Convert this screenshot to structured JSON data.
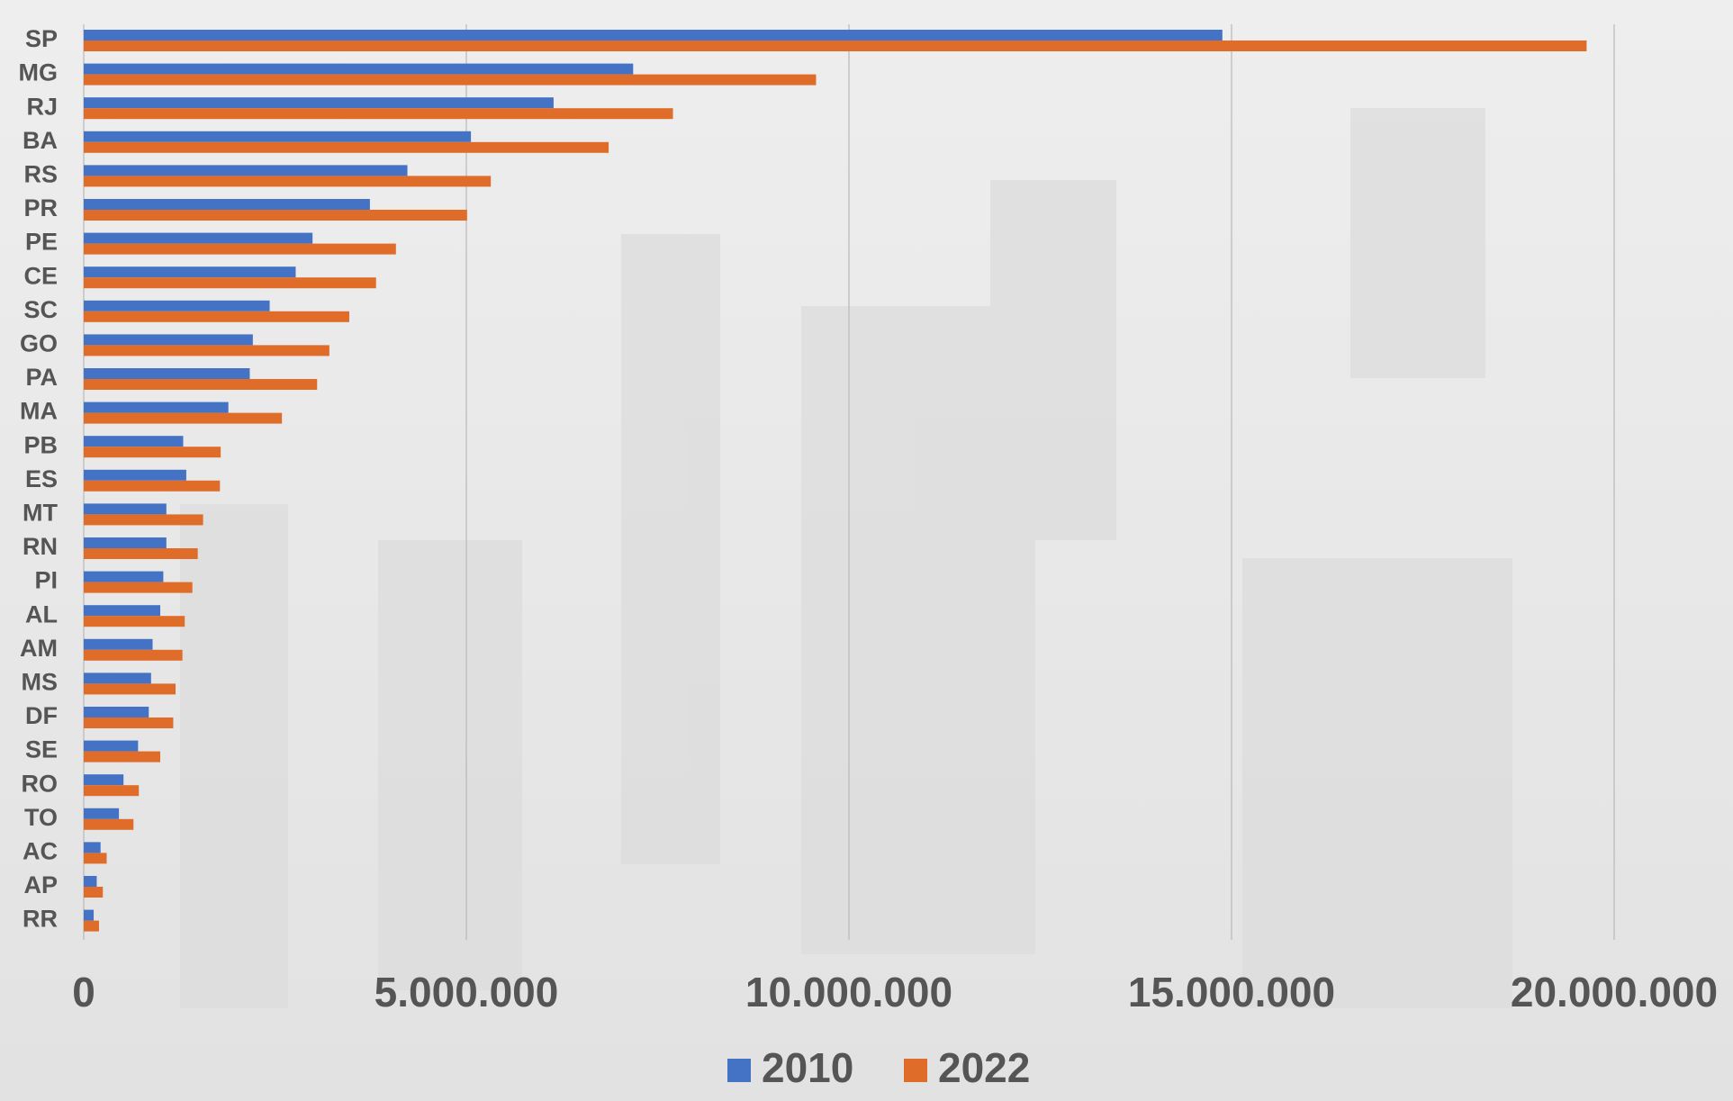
{
  "chart_data": {
    "type": "hbar",
    "categories": [
      "SP",
      "MG",
      "RJ",
      "BA",
      "RS",
      "PR",
      "PE",
      "CE",
      "SC",
      "GO",
      "PA",
      "MA",
      "PB",
      "ES",
      "MT",
      "RN",
      "PI",
      "AL",
      "AM",
      "MS",
      "DF",
      "SE",
      "RO",
      "TO",
      "AC",
      "AP",
      "RR"
    ],
    "series": [
      {
        "name": "2010",
        "color": "#4472c4",
        "values": [
          14880000,
          7180000,
          6140000,
          5060000,
          4230000,
          3740000,
          2990000,
          2770000,
          2430000,
          2210000,
          2170000,
          1890000,
          1300000,
          1340000,
          1080000,
          1080000,
          1040000,
          1000000,
          900000,
          880000,
          850000,
          710000,
          520000,
          460000,
          220000,
          170000,
          130000
        ]
      },
      {
        "name": "2022",
        "color": "#e06c2a",
        "values": [
          19640000,
          9570000,
          7700000,
          6860000,
          5320000,
          5010000,
          4080000,
          3820000,
          3470000,
          3210000,
          3050000,
          2590000,
          1790000,
          1780000,
          1560000,
          1490000,
          1420000,
          1320000,
          1290000,
          1200000,
          1170000,
          1000000,
          720000,
          650000,
          300000,
          250000,
          200000
        ]
      }
    ],
    "xlim": [
      0,
      20000000
    ],
    "xticks": [
      0,
      {
        "value": 5000000,
        "label": "5.000.000"
      },
      {
        "value": 10000000,
        "label": "10.000.000"
      },
      {
        "value": 15000000,
        "label": "15.000.000"
      },
      {
        "value": 20000000,
        "label": "20.000.000"
      }
    ],
    "grid": true
  }
}
